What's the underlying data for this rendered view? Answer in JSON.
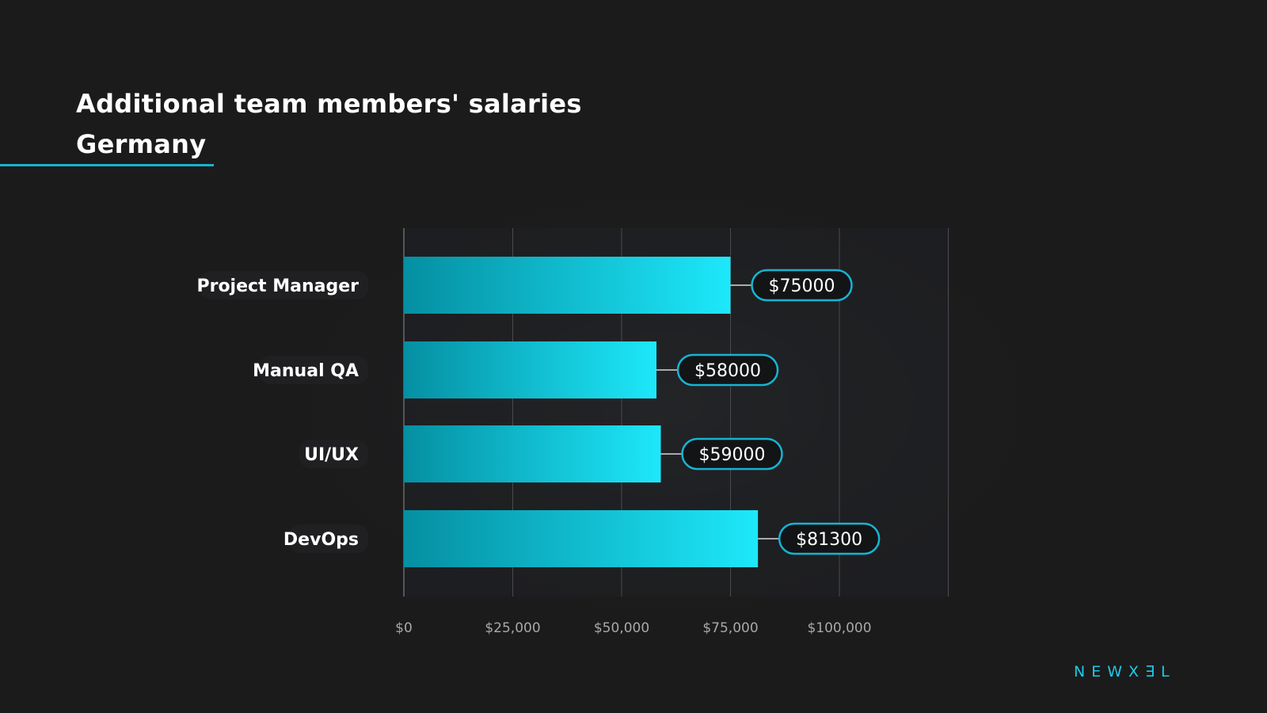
{
  "header": {
    "title_line1": "Additional team members' salaries",
    "title_line2": "Germany"
  },
  "brand": {
    "logo_text": "NEWX∃L"
  },
  "colors": {
    "background": "#1b1b1c",
    "accent": "#16b4d2",
    "bar_start": "#058fa2",
    "bar_end": "#1de8fa",
    "grid": "#4a4a4d",
    "text": "#ffffff",
    "tick_text": "#a8a8a8"
  },
  "chart_data": {
    "type": "bar",
    "orientation": "horizontal",
    "title": "Additional team members' salaries",
    "subtitle": "Germany",
    "categories": [
      "Project Manager",
      "Manual QA",
      "UI/UX",
      "DevOps"
    ],
    "values": [
      75000,
      58000,
      59000,
      81300
    ],
    "data_labels": [
      "$75000",
      "$58000",
      "$59000",
      "$81300"
    ],
    "xticks": [
      0,
      25000,
      50000,
      75000,
      100000
    ],
    "xtick_labels": [
      "$0",
      "$25,000",
      "$50,000",
      "$75,000",
      "$100,000"
    ],
    "xlim": [
      0,
      125000
    ],
    "xlabel": "",
    "ylabel": "",
    "grid": true,
    "legend": "none"
  }
}
